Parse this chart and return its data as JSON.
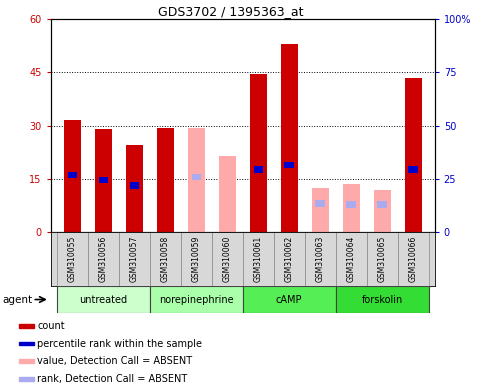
{
  "title": "GDS3702 / 1395363_at",
  "samples": [
    "GSM310055",
    "GSM310056",
    "GSM310057",
    "GSM310058",
    "GSM310059",
    "GSM310060",
    "GSM310061",
    "GSM310062",
    "GSM310063",
    "GSM310064",
    "GSM310065",
    "GSM310066"
  ],
  "groups": [
    {
      "label": "untreated",
      "indices": [
        0,
        1,
        2
      ],
      "color": "#ccffcc"
    },
    {
      "label": "norepinephrine",
      "indices": [
        3,
        4,
        5
      ],
      "color": "#aaffaa"
    },
    {
      "label": "cAMP",
      "indices": [
        6,
        7,
        8
      ],
      "color": "#55ee55"
    },
    {
      "label": "forskolin",
      "indices": [
        9,
        10,
        11
      ],
      "color": "#33dd33"
    }
  ],
  "count_values": [
    31.5,
    29.0,
    24.5,
    29.5,
    null,
    null,
    44.5,
    53.0,
    null,
    null,
    null,
    43.5
  ],
  "rank_values": [
    28.5,
    26.0,
    23.5,
    null,
    null,
    null,
    31.0,
    33.0,
    null,
    null,
    null,
    31.0
  ],
  "absent_value": [
    null,
    null,
    null,
    null,
    29.5,
    21.5,
    null,
    null,
    12.5,
    13.5,
    12.0,
    null
  ],
  "absent_rank": [
    null,
    null,
    null,
    null,
    27.5,
    null,
    null,
    null,
    15.0,
    14.5,
    14.5,
    null
  ],
  "ylim_left": [
    0,
    60
  ],
  "ylim_right": [
    0,
    100
  ],
  "yticks_left": [
    0,
    15,
    30,
    45,
    60
  ],
  "yticks_right": [
    0,
    25,
    50,
    75,
    100
  ],
  "ytick_labels_left": [
    "0",
    "15",
    "30",
    "45",
    "60"
  ],
  "ytick_labels_right": [
    "0",
    "25",
    "50",
    "75",
    "100%"
  ],
  "bar_width": 0.55,
  "count_color": "#cc0000",
  "rank_color": "#0000cc",
  "absent_value_color": "#ffaaaa",
  "absent_rank_color": "#aaaaee",
  "bg_color": "#d8d8d8",
  "plot_bg": "#ffffff",
  "agent_label": "agent",
  "legend_items": [
    {
      "color": "#cc0000",
      "label": "count"
    },
    {
      "color": "#0000cc",
      "label": "percentile rank within the sample"
    },
    {
      "color": "#ffaaaa",
      "label": "value, Detection Call = ABSENT"
    },
    {
      "color": "#aaaaee",
      "label": "rank, Detection Call = ABSENT"
    }
  ]
}
